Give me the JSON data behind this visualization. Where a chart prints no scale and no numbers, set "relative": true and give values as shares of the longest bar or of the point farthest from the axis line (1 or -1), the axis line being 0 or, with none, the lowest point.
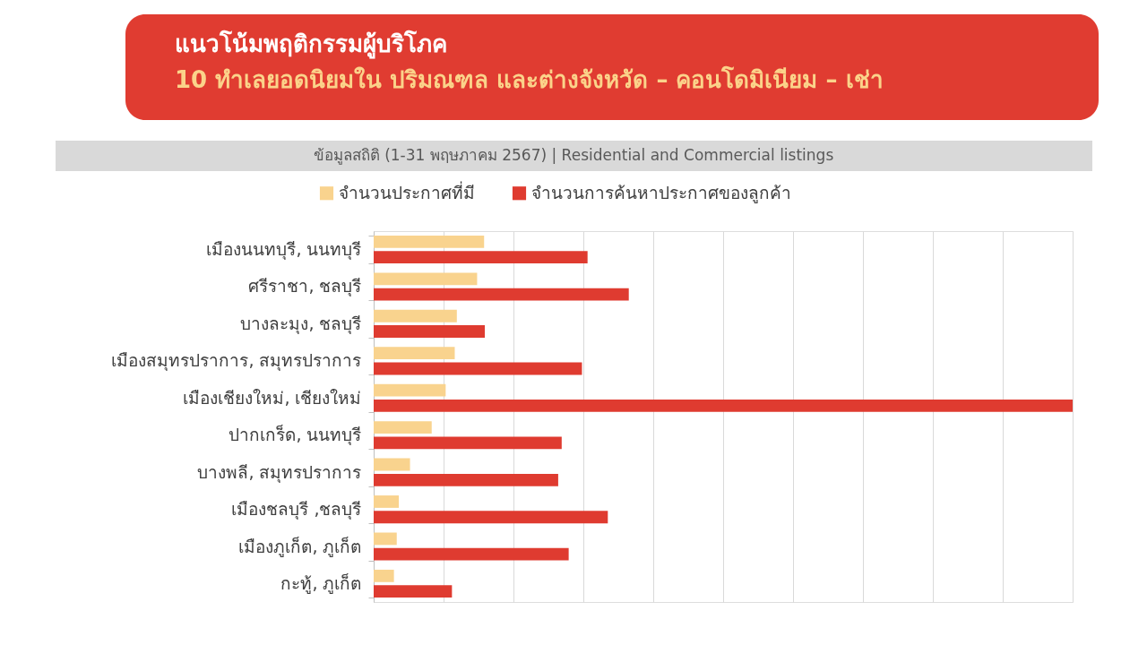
{
  "chart_data": {
    "type": "bar",
    "orientation": "horizontal",
    "relative": true,
    "title": "แนวโน้มพฤติกรรมผู้บริโภค",
    "subtitle": "10 ทำเลยอดนิยมใน ปริมณฑล และต่างจังหวัด – คอนโดมิเนียม – เช่า",
    "annotations": [
      "ข้อมูลสถิติ (1-31 พฤษภาคม 2567) | Residential and Commercial listings"
    ],
    "categories": [
      "เมืองนนทบุรี, นนทบุรี",
      "ศรีราชา, ชลบุรี",
      "บางละมุง, ชลบุรี",
      "เมืองสมุทรปราการ, สมุทรปราการ",
      "เมืองเชียงใหม่, เชียงใหม่",
      "ปากเกร็ด, นนทบุรี",
      "บางพลี, สมุทรปราการ",
      "เมืองชลบุรี ,ชลบุรี",
      "เมืองภูเก็ต, ภูเก็ต",
      "กะทู้, ภูเก็ต"
    ],
    "series": [
      {
        "name": "จำนวนประกาศที่มี",
        "color": "#f9d38e",
        "values": [
          0.158,
          0.148,
          0.119,
          0.116,
          0.103,
          0.083,
          0.052,
          0.036,
          0.033,
          0.029
        ]
      },
      {
        "name": "จำนวนการค้นหาประกาศของลูกค้า",
        "color": "#df3b30",
        "values": [
          0.306,
          0.365,
          0.159,
          0.298,
          1.0,
          0.269,
          0.264,
          0.335,
          0.279,
          0.112
        ]
      }
    ],
    "grid": "x",
    "legend": "top"
  }
}
